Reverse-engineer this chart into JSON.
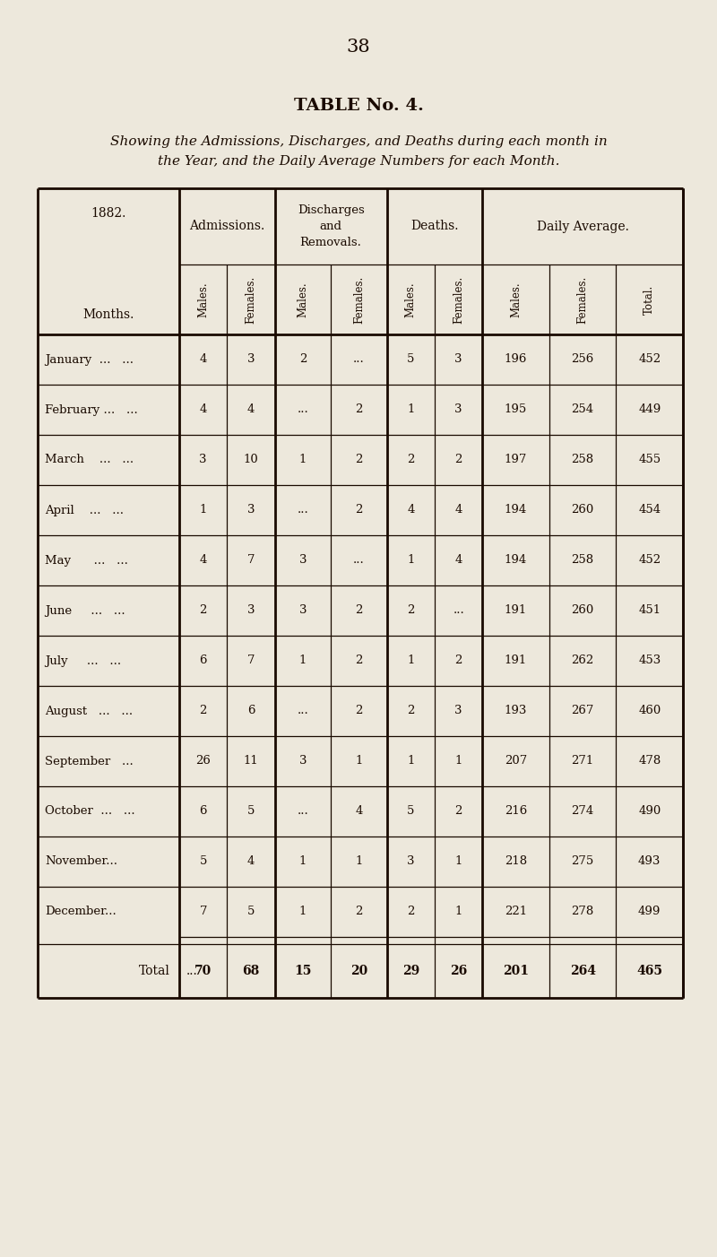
{
  "page_number": "38",
  "title": "TABLE No. 4.",
  "subtitle_line1": "Showing the Admissions, Discharges, and Deaths during each month in",
  "subtitle_line2": "the Year, and the Daily Average Numbers for each Month.",
  "year": "1882.",
  "months": [
    "January  ...   ...",
    "February ...   ...",
    "March    ...   ...",
    "April    ...   ...",
    "May      ...   ...",
    "June     ...   ...",
    "July     ...   ...",
    "August   ...   ...",
    "September   ...",
    "October  ...   ...",
    "November...",
    "December..."
  ],
  "data": [
    [
      "4",
      "3",
      "2",
      "...",
      "5",
      "3",
      "196",
      "256",
      "452"
    ],
    [
      "4",
      "4",
      "...",
      "2",
      "1",
      "3",
      "195",
      "254",
      "449"
    ],
    [
      "3",
      "10",
      "1",
      "2",
      "2",
      "2",
      "197",
      "258",
      "455"
    ],
    [
      "1",
      "3",
      "...",
      "2",
      "4",
      "4",
      "194",
      "260",
      "454"
    ],
    [
      "4",
      "7",
      "3",
      "...",
      "1",
      "4",
      "194",
      "258",
      "452"
    ],
    [
      "2",
      "3",
      "3",
      "2",
      "2",
      "...",
      "191",
      "260",
      "451"
    ],
    [
      "6",
      "7",
      "1",
      "2",
      "1",
      "2",
      "191",
      "262",
      "453"
    ],
    [
      "2",
      "6",
      "...",
      "2",
      "2",
      "3",
      "193",
      "267",
      "460"
    ],
    [
      "26",
      "11",
      "3",
      "1",
      "1",
      "1",
      "207",
      "271",
      "478"
    ],
    [
      "6",
      "5",
      "...",
      "4",
      "5",
      "2",
      "216",
      "274",
      "490"
    ],
    [
      "5",
      "4",
      "1",
      "1",
      "3",
      "1",
      "218",
      "275",
      "493"
    ],
    [
      "7",
      "5",
      "1",
      "2",
      "2",
      "1",
      "221",
      "278",
      "499"
    ]
  ],
  "totals": [
    "70",
    "68",
    "15",
    "20",
    "29",
    "26",
    "201",
    "264",
    "465"
  ],
  "bg_color": "#ede8dc",
  "text_color": "#1a0a00",
  "line_color": "#1a0a00"
}
